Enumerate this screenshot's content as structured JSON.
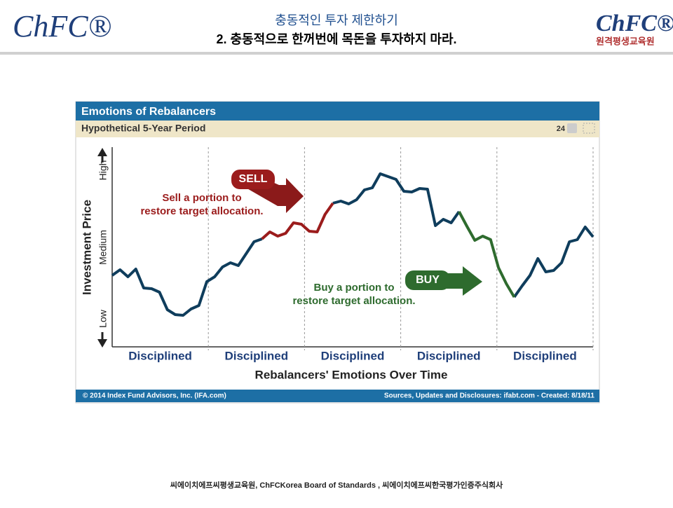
{
  "header": {
    "logo_left": "ChFC®",
    "logo_right": "ChFC®",
    "logo_right_sub": "원격평생교육원",
    "title": "충동적인 투자 제한하기",
    "subtitle": "2. 충동적으로 한꺼번에 목돈을 투자하지 마라."
  },
  "chart_data": {
    "type": "line",
    "title": "Emotions of Rebalancers",
    "subtitle": "Hypothetical 5-Year Period",
    "likes": "24",
    "periods": [
      "Disciplined",
      "Disciplined",
      "Disciplined",
      "Disciplined",
      "Disciplined"
    ],
    "x_label": "Rebalancers' Emotions Over Time",
    "y_label": "Investment Price",
    "ylim": [
      -40,
      245
    ],
    "yticks": [
      {
        "value": 0,
        "label": "Low"
      },
      {
        "value": 102,
        "label": "Medium"
      },
      {
        "value": 212,
        "label": "High"
      }
    ],
    "series": [
      {
        "color": "#0f3d5c",
        "values": [
          62,
          70,
          60,
          71,
          44,
          43,
          38,
          13,
          6,
          5,
          14,
          19,
          53,
          60,
          74,
          80,
          76,
          93,
          110,
          114,
          null,
          null,
          null,
          null,
          null,
          null,
          null,
          null,
          165,
          168,
          164,
          170,
          184,
          187,
          207,
          203,
          199,
          182,
          181,
          186,
          185,
          133,
          142,
          137,
          153,
          null,
          null,
          null,
          null,
          null,
          null,
          31,
          47,
          62,
          86,
          67,
          69,
          80,
          110,
          113,
          131,
          117
        ]
      },
      {
        "color": "#9b1c1c",
        "values": [
          null,
          null,
          null,
          null,
          null,
          null,
          null,
          null,
          null,
          null,
          null,
          null,
          null,
          null,
          null,
          null,
          null,
          null,
          null,
          114,
          124,
          118,
          122,
          137,
          135,
          125,
          124,
          149,
          165,
          null,
          null,
          null,
          null,
          null,
          null,
          null,
          null,
          null,
          null,
          null,
          null,
          null,
          null,
          null,
          null,
          null,
          null,
          null,
          null,
          null,
          null,
          null,
          null,
          null,
          null,
          null,
          null,
          null,
          null,
          null,
          null,
          null
        ]
      },
      {
        "color": "#2e6b2e",
        "values": [
          null,
          null,
          null,
          null,
          null,
          null,
          null,
          null,
          null,
          null,
          null,
          null,
          null,
          null,
          null,
          null,
          null,
          null,
          null,
          null,
          null,
          null,
          null,
          null,
          null,
          null,
          null,
          null,
          null,
          null,
          null,
          null,
          null,
          null,
          null,
          null,
          null,
          null,
          null,
          null,
          null,
          null,
          null,
          null,
          153,
          132,
          112,
          118,
          113,
          73,
          50,
          31,
          null,
          null,
          null,
          null,
          null,
          null,
          null,
          null,
          null,
          null
        ]
      }
    ],
    "sell": {
      "badge": "SELL",
      "lines": [
        "Sell a portion to",
        "restore target allocation."
      ]
    },
    "buy": {
      "badge": "BUY",
      "lines": [
        "Buy a portion to",
        "restore target allocation."
      ]
    },
    "credit": "© 2014 Index Fund Advisors, Inc. (IFA.com)",
    "source": "Sources, Updates and Disclosures: ifabt.com - Created: 8/18/11"
  },
  "footer": "씨에이치에프씨평생교육원, ChFCKorea Board of Standards , 씨에이치에프씨한국평가인증주식회사"
}
